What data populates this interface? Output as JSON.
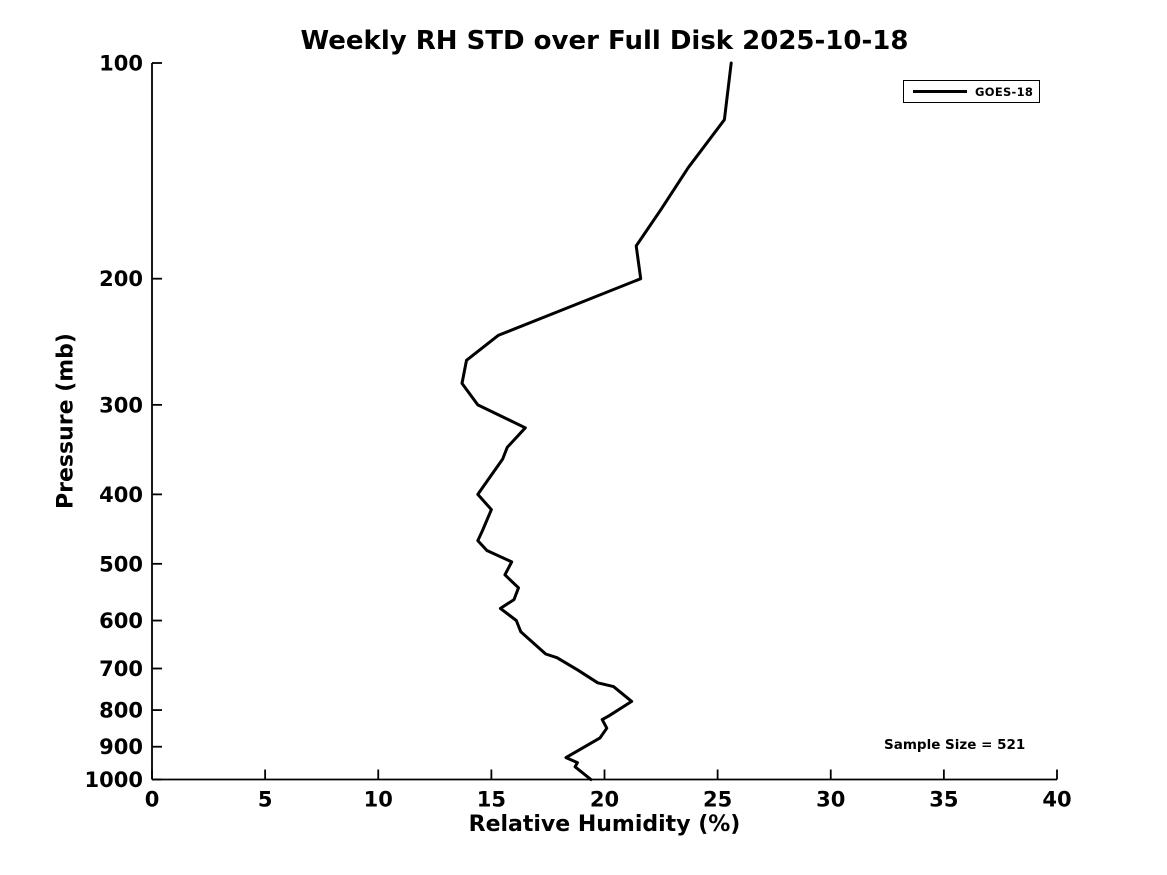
{
  "figure": {
    "background_color": "#ffffff",
    "foreground_color": "#000000"
  },
  "legend": {
    "series_label": "GOES-18"
  },
  "annotation": {
    "text": "Sample Size = 521"
  },
  "chart_data": {
    "type": "line",
    "title": "Weekly RH STD over Full Disk 2025-10-18",
    "xlabel": "Relative Humidity (%)",
    "ylabel": "Pressure (mb)",
    "xlim": [
      0,
      40
    ],
    "ylim": [
      100,
      1000
    ],
    "y_scale": "log",
    "y_axis_inverted": true,
    "grid": false,
    "tick_direction": "in",
    "legend_position": "upper-right",
    "legend_entries": [
      "GOES-18"
    ],
    "x_ticks": [
      0,
      5,
      10,
      15,
      20,
      25,
      30,
      35,
      40
    ],
    "y_ticks": [
      100,
      200,
      300,
      400,
      500,
      600,
      700,
      800,
      900,
      1000
    ],
    "series": [
      {
        "name": "GOES-18",
        "color": "#000000",
        "line_width": 3,
        "pressure_mb": [
          100,
          120,
          140,
          160,
          180,
          200,
          240,
          260,
          280,
          300,
          323,
          344,
          357,
          400,
          420,
          450,
          464,
          479,
          497,
          518,
          540,
          561,
          577,
          600,
          622,
          668,
          676,
          703,
          733,
          742,
          778,
          815,
          825,
          848,
          875,
          890,
          932,
          947,
          960,
          1000
        ],
        "rh_std_percent": [
          25.6,
          25.3,
          23.7,
          22.5,
          21.4,
          21.6,
          15.3,
          13.9,
          13.7,
          14.4,
          16.5,
          15.7,
          15.5,
          14.4,
          15.0,
          14.6,
          14.4,
          14.8,
          15.9,
          15.6,
          16.2,
          16.0,
          15.4,
          16.1,
          16.3,
          17.4,
          17.9,
          18.8,
          19.7,
          20.4,
          21.2,
          20.2,
          19.9,
          20.1,
          19.8,
          19.4,
          18.3,
          18.8,
          18.7,
          19.4
        ]
      }
    ],
    "annotations": [
      {
        "text": "Sample Size = 521",
        "position": "lower-right"
      }
    ]
  }
}
